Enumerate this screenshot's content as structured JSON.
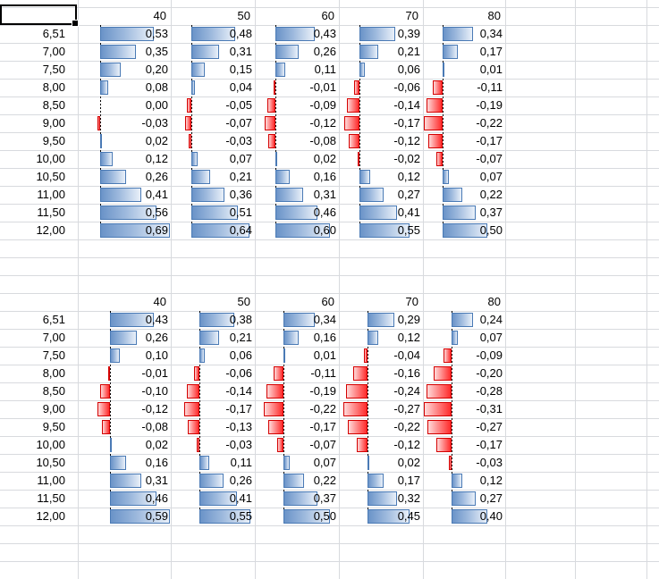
{
  "app": {
    "kind": "spreadsheet-grid-with-data-bars",
    "selected_cell_value": ""
  },
  "colors": {
    "gridline": "#d8dade",
    "positive_bar_fill_start": "#6a93c8",
    "positive_bar_fill_end": "#e9f0f9",
    "positive_bar_border": "#4a7ab5",
    "negative_bar_fill_strong": "#ff2b2b",
    "negative_bar_fill_light": "#ffd9d9",
    "negative_bar_border": "#d40000",
    "axis_line": "#000000",
    "selection_border": "#000000",
    "text": "#000000"
  },
  "chart_data": [
    {
      "type": "bar",
      "orientation": "horizontal-data-bars",
      "title": "",
      "column_headers": [
        "40",
        "50",
        "60",
        "70",
        "80"
      ],
      "row_labels": [
        "6,51",
        "7,00",
        "7,50",
        "8,00",
        "8,50",
        "9,00",
        "9,50",
        "10,00",
        "10,50",
        "11,00",
        "11,50",
        "12,00"
      ],
      "values": [
        [
          "0,53",
          "0,48",
          "0,43",
          "0,39",
          "0,34"
        ],
        [
          "0,35",
          "0,31",
          "0,26",
          "0,21",
          "0,17"
        ],
        [
          "0,20",
          "0,15",
          "0,11",
          "0,06",
          "0,01"
        ],
        [
          "0,08",
          "0,04",
          "-0,01",
          "-0,06",
          "-0,11"
        ],
        [
          "0,00",
          "-0,05",
          "-0,09",
          "-0,14",
          "-0,19"
        ],
        [
          "-0,03",
          "-0,07",
          "-0,12",
          "-0,17",
          "-0,22"
        ],
        [
          "0,02",
          "-0,03",
          "-0,08",
          "-0,12",
          "-0,17"
        ],
        [
          "0,12",
          "0,07",
          "0,02",
          "-0,02",
          "-0,07"
        ],
        [
          "0,26",
          "0,21",
          "0,16",
          "0,12",
          "0,07"
        ],
        [
          "0,41",
          "0,36",
          "0,31",
          "0,27",
          "0,22"
        ],
        [
          "0,56",
          "0,51",
          "0,46",
          "0,41",
          "0,37"
        ],
        [
          "0,69",
          "0,64",
          "0,60",
          "0,55",
          "0,50"
        ]
      ],
      "bar_scale_min": -0.22,
      "bar_scale_max": 0.69,
      "legend": "blue bars = positive values extending right of dashed zero axis, red bars = negative values extending left"
    },
    {
      "type": "bar",
      "orientation": "horizontal-data-bars",
      "title": "",
      "column_headers": [
        "40",
        "50",
        "60",
        "70",
        "80"
      ],
      "row_labels": [
        "6,51",
        "7,00",
        "7,50",
        "8,00",
        "8,50",
        "9,00",
        "9,50",
        "10,00",
        "10,50",
        "11,00",
        "11,50",
        "12,00"
      ],
      "values": [
        [
          "0,43",
          "0,38",
          "0,34",
          "0,29",
          "0,24"
        ],
        [
          "0,26",
          "0,21",
          "0,16",
          "0,12",
          "0,07"
        ],
        [
          "0,10",
          "0,06",
          "0,01",
          "-0,04",
          "-0,09"
        ],
        [
          "-0,01",
          "-0,06",
          "-0,11",
          "-0,16",
          "-0,20"
        ],
        [
          "-0,10",
          "-0,14",
          "-0,19",
          "-0,24",
          "-0,28"
        ],
        [
          "-0,12",
          "-0,17",
          "-0,22",
          "-0,27",
          "-0,31"
        ],
        [
          "-0,08",
          "-0,13",
          "-0,17",
          "-0,22",
          "-0,27"
        ],
        [
          "0,02",
          "-0,03",
          "-0,07",
          "-0,12",
          "-0,17"
        ],
        [
          "0,16",
          "0,11",
          "0,07",
          "0,02",
          "-0,03"
        ],
        [
          "0,31",
          "0,26",
          "0,22",
          "0,17",
          "0,12"
        ],
        [
          "0,46",
          "0,41",
          "0,37",
          "0,32",
          "0,27"
        ],
        [
          "0,59",
          "0,55",
          "0,50",
          "0,45",
          "0,40"
        ]
      ],
      "bar_scale_min": -0.31,
      "bar_scale_max": 0.59,
      "legend": "blue bars = positive values extending right of dashed zero axis, red bars = negative values extending left"
    }
  ]
}
